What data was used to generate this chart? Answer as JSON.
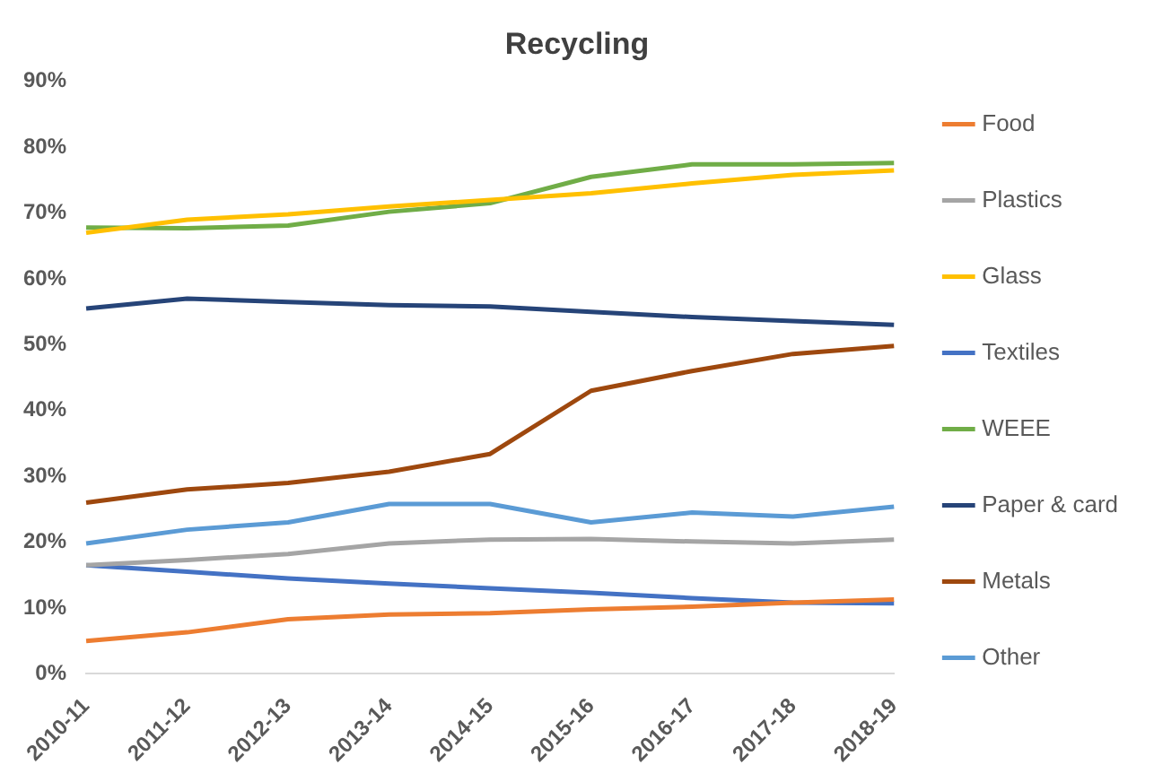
{
  "chart_data": {
    "type": "line",
    "title": "Recycling",
    "categories": [
      "2010-11",
      "2011-12",
      "2012-13",
      "2013-14",
      "2014-15",
      "2015-16",
      "2016-17",
      "2017-18",
      "2018-19"
    ],
    "series": [
      {
        "name": "Food",
        "color": "#ed7d31",
        "values": [
          5,
          6.3,
          8.3,
          9,
          9.2,
          9.8,
          10.2,
          10.8,
          11.3
        ]
      },
      {
        "name": "Plastics",
        "color": "#a5a5a5",
        "values": [
          16.5,
          17.3,
          18.2,
          19.8,
          20.4,
          20.5,
          20.1,
          19.8,
          20.4
        ]
      },
      {
        "name": "Glass",
        "color": "#ffc000",
        "values": [
          67,
          69,
          69.8,
          71,
          72,
          73,
          74.5,
          75.8,
          76.5
        ]
      },
      {
        "name": "Textiles",
        "color": "#4472c4",
        "values": [
          16.5,
          15.5,
          14.5,
          13.7,
          13,
          12.3,
          11.5,
          10.8,
          10.7
        ]
      },
      {
        "name": "WEEE",
        "color": "#70ad47",
        "values": [
          67.8,
          67.7,
          68.1,
          70.2,
          71.5,
          75.5,
          77.4,
          77.4,
          77.6
        ]
      },
      {
        "name": "Paper & card",
        "color": "#264478",
        "values": [
          55.5,
          57,
          56.5,
          56,
          55.8,
          55,
          54.2,
          53.6,
          53
        ]
      },
      {
        "name": "Metals",
        "color": "#9e480e",
        "values": [
          26,
          28,
          29,
          30.7,
          33.4,
          43,
          46,
          48.6,
          49.8
        ]
      },
      {
        "name": "Other",
        "color": "#5b9bd5",
        "values": [
          19.8,
          21.9,
          23,
          25.8,
          25.8,
          23,
          24.5,
          23.9,
          25.4
        ]
      }
    ],
    "ylim": [
      0,
      90
    ],
    "yticks": [
      {
        "value": 0,
        "label": "0%"
      },
      {
        "value": 10,
        "label": "10%"
      },
      {
        "value": 20,
        "label": "20%"
      },
      {
        "value": 30,
        "label": "30%"
      },
      {
        "value": 40,
        "label": "40%"
      },
      {
        "value": 50,
        "label": "50%"
      },
      {
        "value": 60,
        "label": "60%"
      },
      {
        "value": 70,
        "label": "70%"
      },
      {
        "value": 80,
        "label": "80%"
      },
      {
        "value": 90,
        "label": "90%"
      }
    ],
    "grid": false,
    "legend": "right",
    "marker": "none",
    "line_style": "solid"
  }
}
